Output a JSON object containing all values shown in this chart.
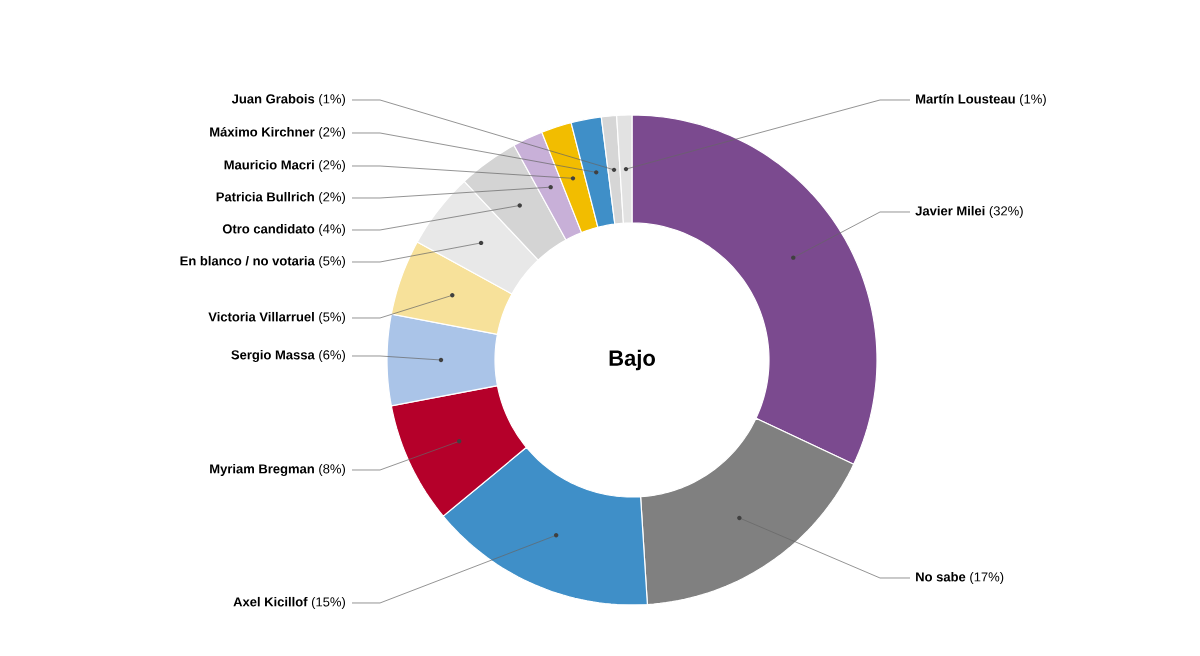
{
  "chart_data": {
    "type": "donut",
    "title": "Bajo",
    "categories": [
      "Javier Milei",
      "No sabe",
      "Axel Kicillof",
      "Myriam Bregman",
      "Sergio Massa",
      "Victoria Villarruel",
      "En blanco / no votaria",
      "Otro candidato",
      "Patricia Bullrich",
      "Mauricio Macri",
      "Máximo Kirchner",
      "Juan Grabois",
      "Martín Lousteau"
    ],
    "values": [
      32,
      17,
      15,
      8,
      6,
      5,
      5,
      4,
      2,
      2,
      2,
      1,
      1
    ],
    "value_labels": [
      "(32%)",
      "(17%)",
      "(15%)",
      "(8%)",
      "(6%)",
      "(5%)",
      "(5%)",
      "(4%)",
      "(2%)",
      "(2%)",
      "(2%)",
      "(1%)",
      "(1%)"
    ],
    "colors": [
      "#7b4a8f",
      "#808080",
      "#3f8fc8",
      "#b5002a",
      "#aac4e8",
      "#f7e19a",
      "#e8e8e8",
      "#d4d4d4",
      "#c8b0d8",
      "#f2bd00",
      "#3f8fc8",
      "#d6d6d6",
      "#e2e2e2"
    ]
  }
}
